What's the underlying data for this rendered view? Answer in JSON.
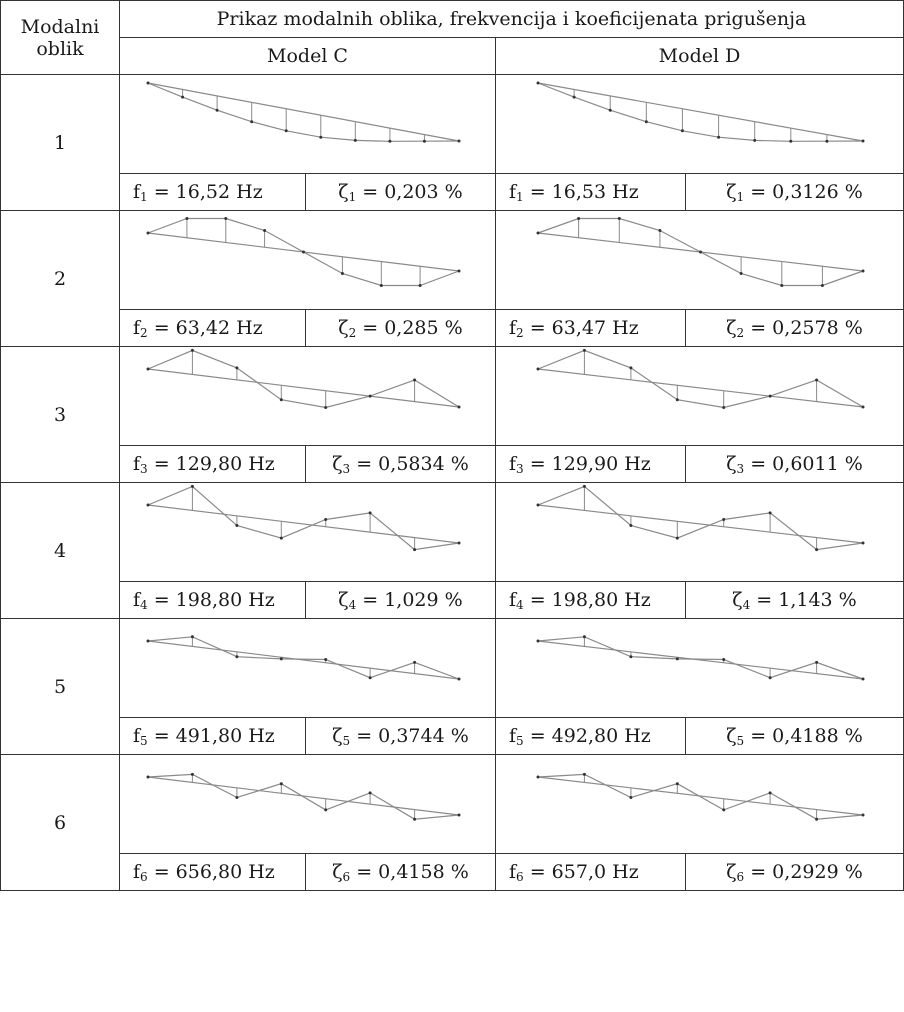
{
  "header": {
    "col1_line1": "Modalni",
    "col1_line2": "oblik",
    "title": "Prikaz modalnih oblika, frekvencija i koeficijenata prigušenja",
    "model_c": "Model C",
    "model_d": "Model D"
  },
  "modes": [
    {
      "num": "1",
      "c_freq": " = 16,52 Hz",
      "c_damp": " = 0,203 %",
      "d_freq": " = 16,53 Hz",
      "d_damp": " = 0,3126 %"
    },
    {
      "num": "2",
      "c_freq": " = 63,42 Hz",
      "c_damp": " = 0,285 %",
      "d_freq": " = 63,47 Hz",
      "d_damp": " = 0,2578 %"
    },
    {
      "num": "3",
      "c_freq": " = 129,80 Hz",
      "c_damp": " = 0,5834 %",
      "d_freq": " = 129,90 Hz",
      "d_damp": " = 0,6011 %"
    },
    {
      "num": "4",
      "c_freq": " = 198,80 Hz",
      "c_damp": " = 1,029 %",
      "d_freq": " = 198,80 Hz",
      "d_damp": " = 1,143 %"
    },
    {
      "num": "5",
      "c_freq": " = 491,80 Hz",
      "c_damp": " = 0,3744 %",
      "d_freq": " = 492,80 Hz",
      "d_damp": " = 0,4188 %"
    },
    {
      "num": "6",
      "c_freq": " = 656,80 Hz",
      "c_damp": " = 0,4158 %",
      "d_freq": " = 657,0 Hz",
      "d_damp": " = 0,2929 %"
    }
  ],
  "symbols": {
    "freq": "f",
    "damp": "ζ"
  }
}
